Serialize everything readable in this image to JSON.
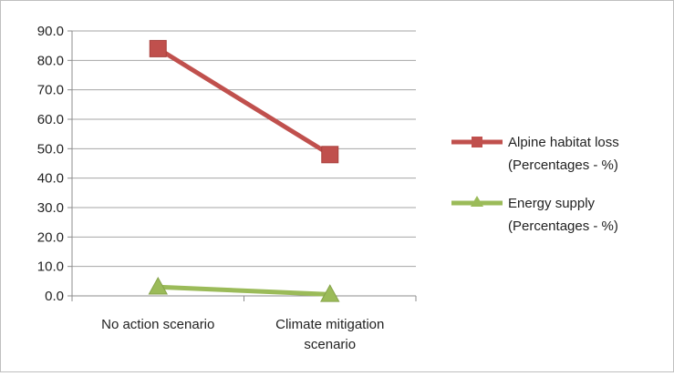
{
  "chart_data": {
    "type": "line",
    "title": "",
    "xlabel": "",
    "ylabel": "",
    "categories": [
      [
        "No action scenario"
      ],
      [
        "Climate mitigation",
        "scenario"
      ]
    ],
    "ylim": [
      0,
      90
    ],
    "ytick_step": 10,
    "ytick_labels": [
      "0.0",
      "10.0",
      "20.0",
      "30.0",
      "40.0",
      "50.0",
      "60.0",
      "70.0",
      "80.0",
      "90.0"
    ],
    "grid": true,
    "legend_position": "right",
    "series": [
      {
        "name_lines": [
          "Alpine habitat loss",
          "(Percentages - %)"
        ],
        "values": [
          84.0,
          48.0
        ],
        "color": "#c0504d",
        "marker": "square"
      },
      {
        "name_lines": [
          "Energy supply",
          "(Percentages - %)"
        ],
        "values": [
          3.0,
          0.5
        ],
        "color": "#9bbb59",
        "marker": "triangle"
      }
    ]
  }
}
